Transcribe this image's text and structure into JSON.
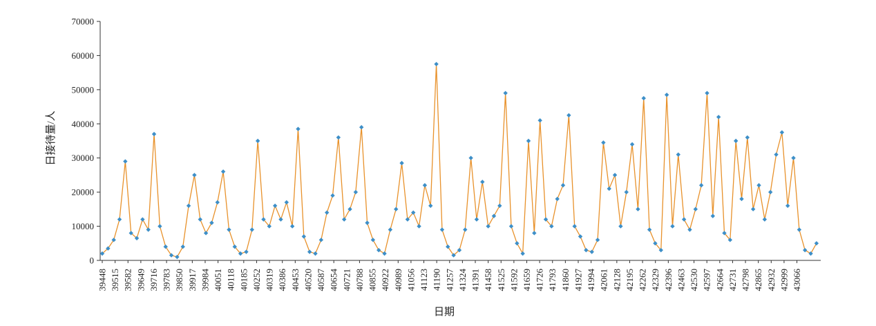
{
  "chart_data": {
    "type": "line",
    "xlabel": "日期",
    "ylabel": "日接待量/人",
    "x": [
      39448,
      39478,
      39508,
      39538,
      39568,
      39598,
      39628,
      39658,
      39688,
      39718,
      39748,
      39778,
      39808,
      39838,
      39868,
      39898,
      39928,
      39958,
      39988,
      40018,
      40048,
      40078,
      40108,
      40138,
      40168,
      40198,
      40228,
      40258,
      40288,
      40318,
      40348,
      40378,
      40408,
      40438,
      40468,
      40498,
      40528,
      40558,
      40588,
      40618,
      40648,
      40678,
      40708,
      40738,
      40768,
      40798,
      40828,
      40858,
      40888,
      40918,
      40948,
      40978,
      41008,
      41038,
      41068,
      41098,
      41128,
      41158,
      41188,
      41218,
      41248,
      41278,
      41308,
      41338,
      41368,
      41398,
      41428,
      41458,
      41488,
      41518,
      41548,
      41578,
      41608,
      41638,
      41668,
      41698,
      41728,
      41758,
      41788,
      41818,
      41848,
      41878,
      41908,
      41938,
      41968,
      41998,
      42028,
      42058,
      42088,
      42118,
      42148,
      42178,
      42208,
      42238,
      42268,
      42298,
      42328,
      42358,
      42388,
      42418,
      42448,
      42478,
      42508,
      42538,
      42568,
      42598,
      42628,
      42658,
      42688,
      42718,
      42748,
      42778,
      42808,
      42838,
      42868,
      42898,
      42928,
      42958,
      42988,
      43018,
      43048,
      43078,
      43108,
      43138,
      43168
    ],
    "series": [
      {
        "name": "日接待量",
        "line_color": "#e8912a",
        "marker_color": "#3d8fc8",
        "values": [
          2000,
          3500,
          6000,
          12000,
          29000,
          8000,
          6500,
          12000,
          9000,
          37000,
          10000,
          4000,
          1500,
          1000,
          4000,
          16000,
          25000,
          12000,
          8000,
          11000,
          17000,
          26000,
          9000,
          4000,
          2000,
          2500,
          9000,
          35000,
          12000,
          10000,
          16000,
          12000,
          17000,
          10000,
          38500,
          7000,
          2500,
          2000,
          6000,
          14000,
          19000,
          36000,
          12000,
          15000,
          20000,
          39000,
          11000,
          6000,
          3000,
          2000,
          9000,
          15000,
          28500,
          12000,
          14000,
          10000,
          22000,
          16000,
          57500,
          9000,
          4000,
          1500,
          3000,
          9000,
          30000,
          12000,
          23000,
          10000,
          13000,
          16000,
          49000,
          10000,
          5000,
          2000,
          35000,
          8000,
          41000,
          12000,
          10000,
          18000,
          22000,
          42500,
          10000,
          7000,
          3000,
          2500,
          6000,
          34500,
          21000,
          25000,
          10000,
          20000,
          34000,
          15000,
          47500,
          9000,
          5000,
          3000,
          48500,
          10000,
          31000,
          12000,
          9000,
          15000,
          22000,
          49000,
          13000,
          42000,
          8000,
          6000,
          35000,
          18000,
          36000,
          15000,
          22000,
          12000,
          20000,
          31000,
          37500,
          16000,
          30000,
          9000,
          3000,
          2000,
          5000
        ]
      }
    ],
    "xlim": [
      39448,
      43190
    ],
    "xticks": [
      39448,
      39515,
      39582,
      39649,
      39716,
      39783,
      39850,
      39917,
      39984,
      40051,
      40118,
      40185,
      40252,
      40319,
      40386,
      40453,
      40520,
      40587,
      40654,
      40721,
      40788,
      40855,
      40922,
      40989,
      41056,
      41123,
      41190,
      41257,
      41324,
      41391,
      41458,
      41525,
      41592,
      41659,
      41726,
      41793,
      41860,
      41927,
      41994,
      42061,
      42128,
      42195,
      42262,
      42329,
      42396,
      42463,
      42530,
      42597,
      42664,
      42731,
      42798,
      42865,
      42932,
      42999,
      43066
    ],
    "ylim": [
      0,
      70000
    ],
    "yticks": [
      0,
      10000,
      20000,
      30000,
      40000,
      50000,
      60000,
      70000
    ],
    "grid": false
  }
}
